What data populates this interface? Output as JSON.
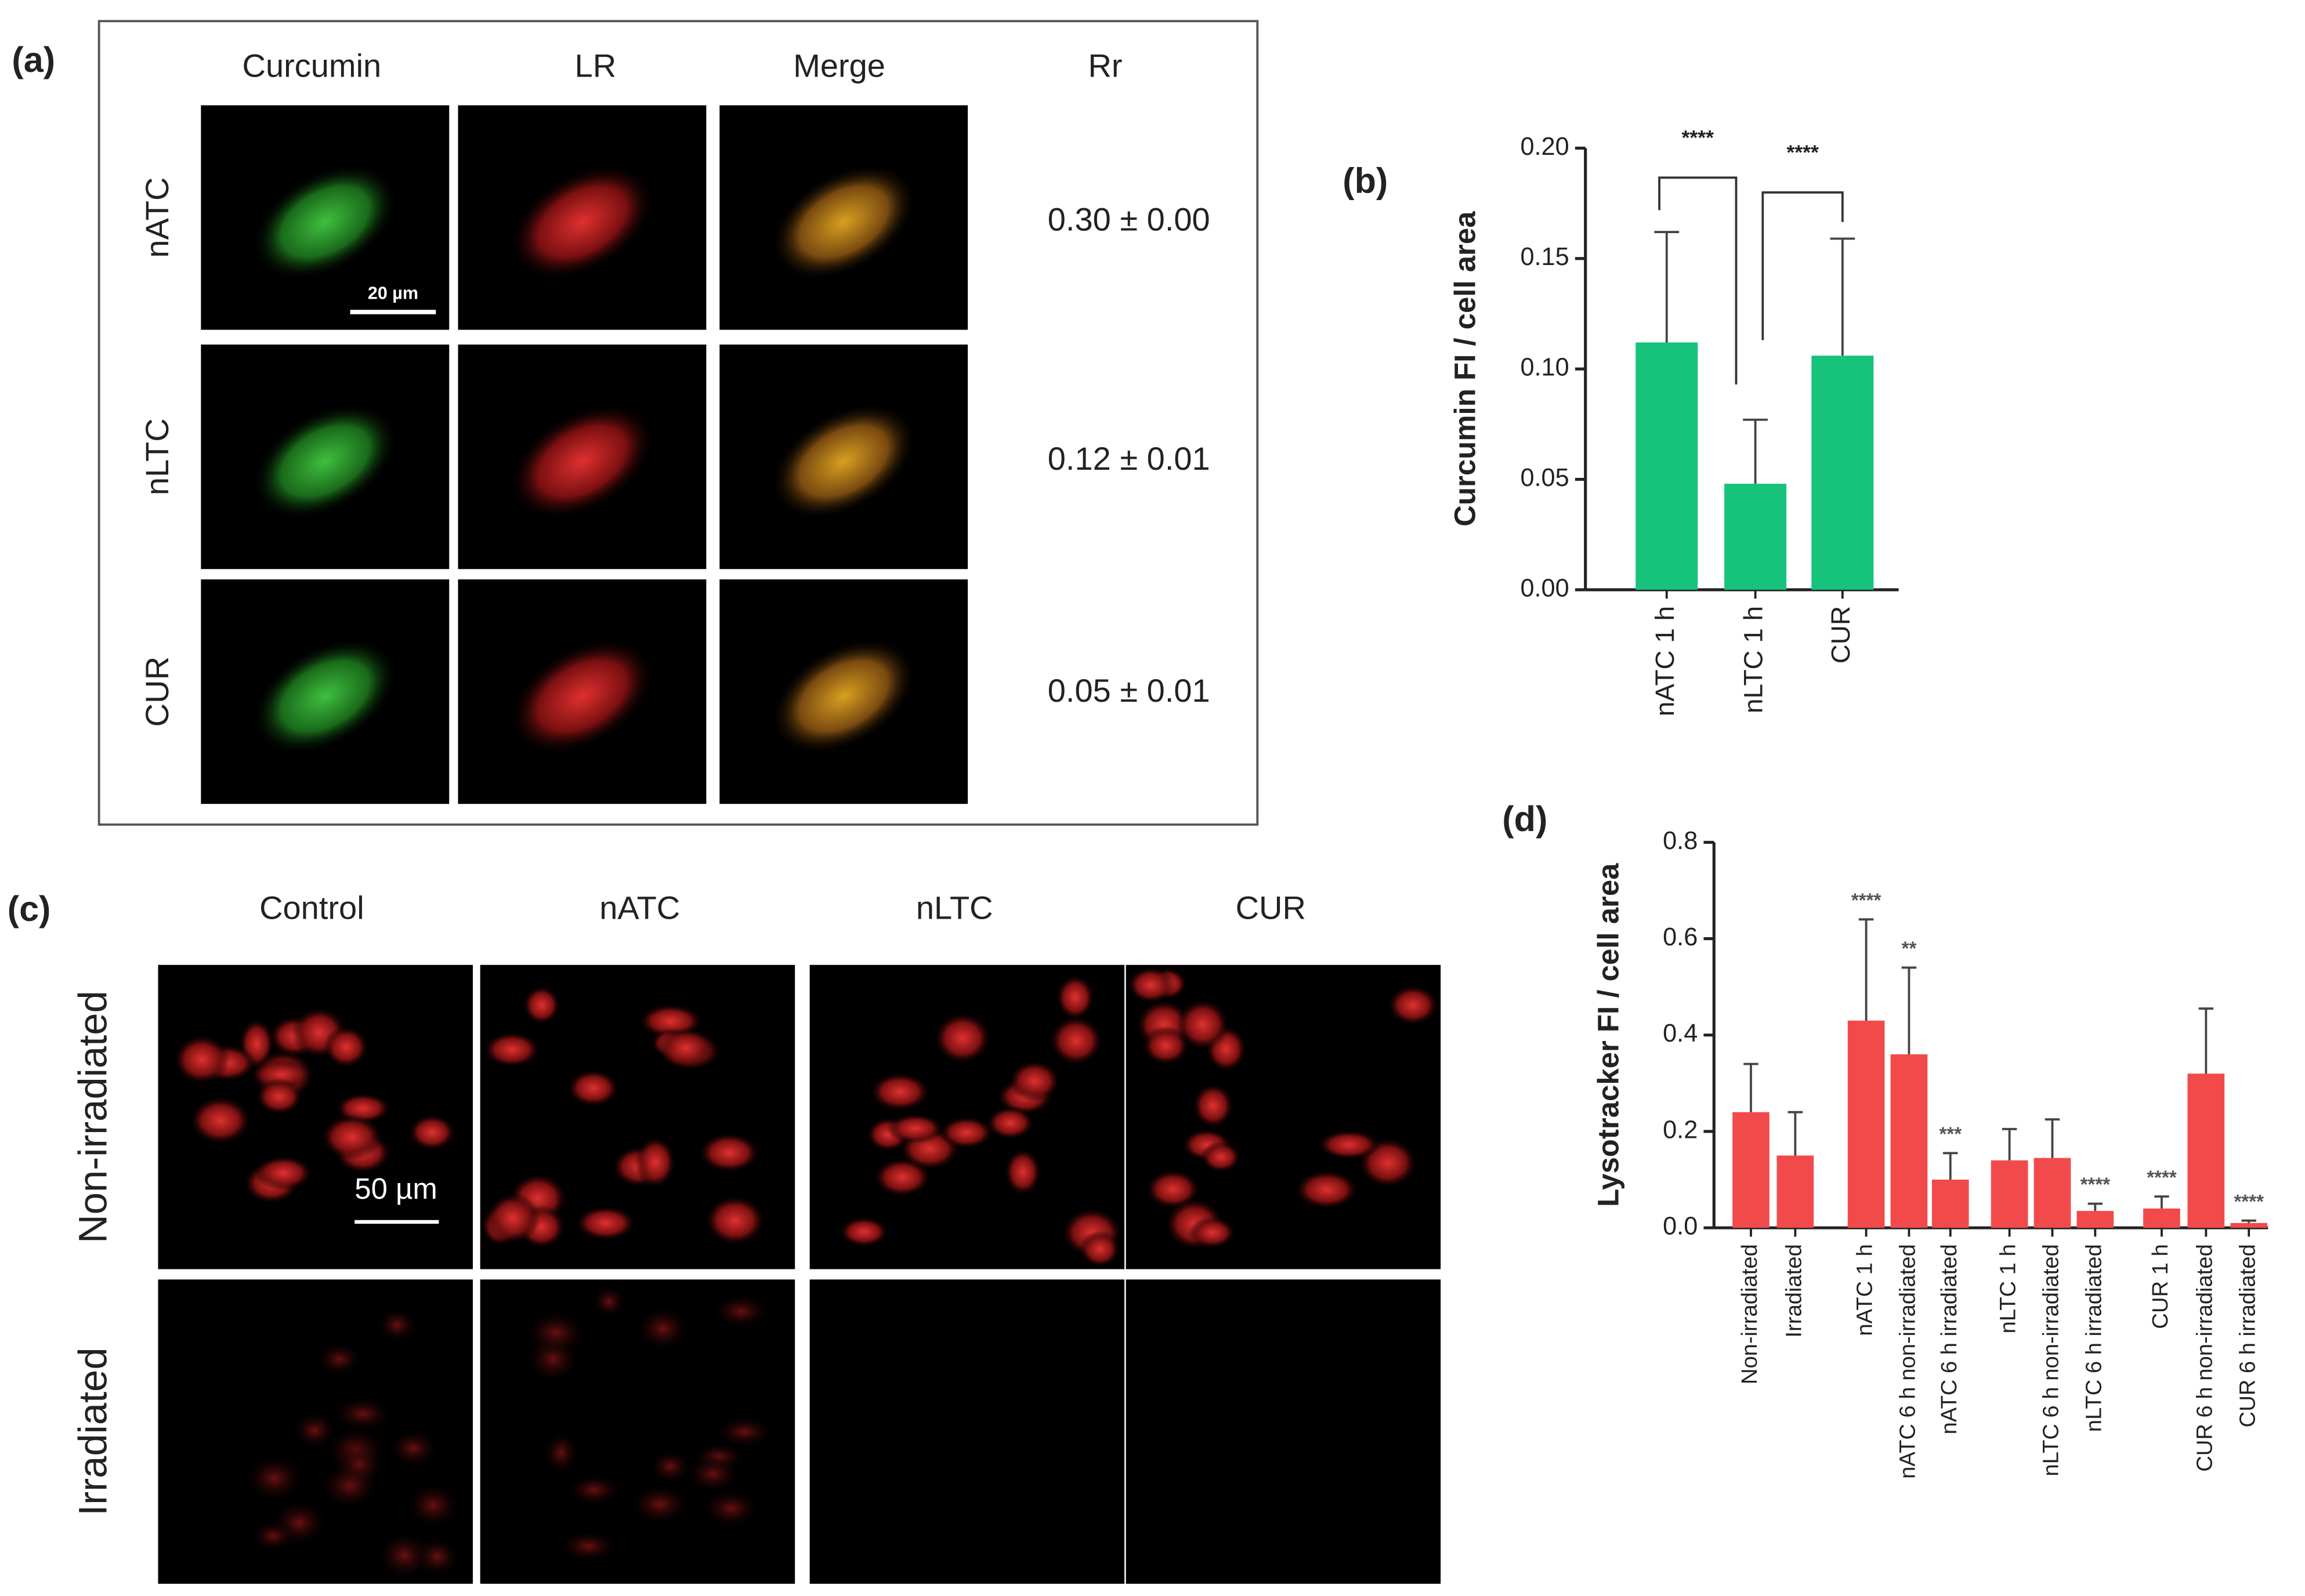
{
  "panel_a": {
    "label": "(a)",
    "columns": [
      "Curcumin",
      "LR",
      "Merge",
      "Rr"
    ],
    "rows": [
      {
        "label": "nATC",
        "rr": "0.30 ± 0.00"
      },
      {
        "label": "nLTC",
        "rr": "0.12 ± 0.01"
      },
      {
        "label": "CUR",
        "rr": "0.05 ± 0.01"
      }
    ],
    "scale_bar": "20 µm"
  },
  "panel_c": {
    "label": "(c)",
    "columns": [
      "Control",
      "nATC",
      "nLTC",
      "CUR"
    ],
    "rows": [
      "Non-irradiated",
      "Irradiated"
    ],
    "scale_bar": "50 µm"
  },
  "chart_data": [
    {
      "type": "bar",
      "label": "(b)",
      "y_label": "Curcumin FI / cell area",
      "categories": [
        "nATC 1 h",
        "nLTC 1 h",
        "CUR"
      ],
      "values": [
        0.112,
        0.048,
        0.106
      ],
      "errors": [
        0.05,
        0.029,
        0.053
      ],
      "significance": [
        "****",
        "****"
      ],
      "color": "#17c27b",
      "ylim": [
        0,
        0.2
      ],
      "yticks": [
        {
          "value": 0,
          "label": "0.00"
        },
        {
          "value": 0.05,
          "label": "0.05"
        },
        {
          "value": 0.1,
          "label": "0.10"
        },
        {
          "value": 0.15,
          "label": "0.15"
        },
        {
          "value": 0.2,
          "label": "0.20"
        }
      ]
    },
    {
      "type": "bar",
      "label": "(d)",
      "y_label": "Lysotracker FI / cell area",
      "categories": [
        "Non-irradiated",
        "Irradiated",
        "nATC 1 h",
        "nATC 6 h non-irradiated",
        "nATC 6 h irradiated",
        "nLTC 1 h",
        "nLTC 6 h non-irradiated",
        "nLTC 6 h irradiated",
        "CUR 1 h",
        "CUR 6 h non-irradiated",
        "CUR 6 h irradiated"
      ],
      "values": [
        0.24,
        0.15,
        0.43,
        0.36,
        0.1,
        0.14,
        0.145,
        0.035,
        0.04,
        0.32,
        0.01
      ],
      "errors": [
        0.1,
        0.09,
        0.21,
        0.18,
        0.055,
        0.065,
        0.08,
        0.015,
        0.025,
        0.135,
        0.005
      ],
      "significance": [
        null,
        null,
        "****",
        "**",
        "***",
        null,
        null,
        "****",
        "****",
        null,
        "****"
      ],
      "color": "#f24a4a",
      "ylim": [
        0,
        0.8
      ],
      "yticks": [
        {
          "value": 0,
          "label": "0.0"
        },
        {
          "value": 0.2,
          "label": "0.2"
        },
        {
          "value": 0.4,
          "label": "0.4"
        },
        {
          "value": 0.6,
          "label": "0.6"
        },
        {
          "value": 0.8,
          "label": "0.8"
        }
      ]
    }
  ]
}
